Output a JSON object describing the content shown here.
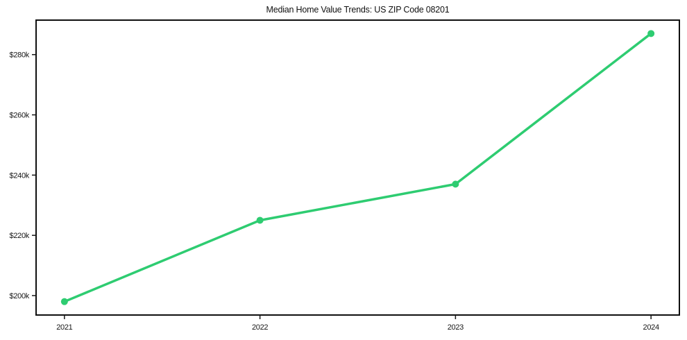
{
  "chart_data": {
    "type": "line",
    "title": "Median Home Value Trends: US ZIP Code 08201",
    "xlabel": "",
    "ylabel": "",
    "x": [
      2021,
      2022,
      2023,
      2024
    ],
    "x_tick_labels": [
      "2021",
      "2022",
      "2023",
      "2024"
    ],
    "series": [
      {
        "name": "Median Home Value",
        "color": "#2ecc71",
        "values": [
          198000,
          225000,
          237000,
          287000
        ]
      }
    ],
    "yticks": {
      "values": [
        200000,
        220000,
        240000,
        260000,
        280000
      ],
      "labels": [
        "$200k",
        "$220k",
        "$240k",
        "$260k",
        "$280k"
      ]
    },
    "xlim": [
      2020.855,
      2024.145
    ],
    "ylim": [
      193550,
      291450
    ],
    "grid": false,
    "legend_position": "none",
    "marker": "circle"
  },
  "colors": {
    "background": "#ffffff",
    "spine": "#0f0f0f",
    "tick": "#151515",
    "text": "#151515",
    "line": "#2ecc71"
  }
}
